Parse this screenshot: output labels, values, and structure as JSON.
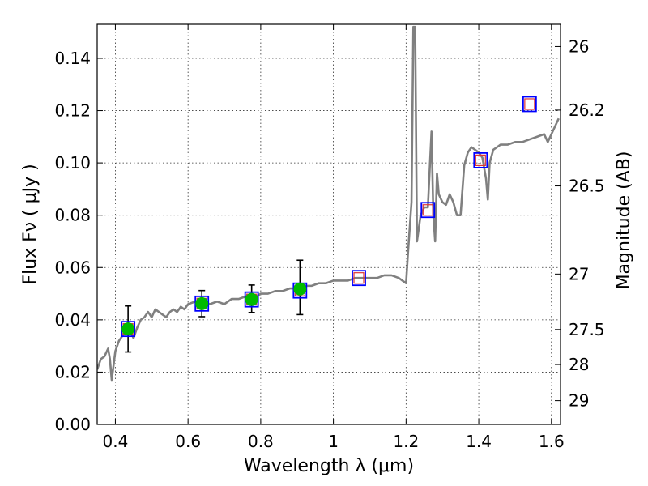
{
  "chart_data": {
    "type": "scatter",
    "xlabel": "Wavelength  λ (μm)",
    "ylabel": "Flux  Fν  ( μJy )",
    "right_ylabel": "Magnitude (AB)",
    "xlim": [
      0.35,
      1.625
    ],
    "ylim": [
      0.0,
      0.153
    ],
    "x_ticks": [
      0.4,
      0.6,
      0.8,
      1.0,
      1.2,
      1.4,
      1.6
    ],
    "x_tick_labels": [
      "0.4",
      "0.6",
      "0.8",
      "1",
      "1.2",
      "1.4",
      "1.6"
    ],
    "y_ticks": [
      0.0,
      0.02,
      0.04,
      0.06,
      0.08,
      0.1,
      0.12,
      0.14
    ],
    "y_tick_labels": [
      "0.00",
      "0.02",
      "0.04",
      "0.06",
      "0.08",
      "0.10",
      "0.12",
      "0.14"
    ],
    "right_ticks": [
      {
        "label": "26",
        "flux": 0.1445
      },
      {
        "label": "26.2",
        "flux": 0.1202
      },
      {
        "label": "26.5",
        "flux": 0.0912
      },
      {
        "label": "27",
        "flux": 0.0575
      },
      {
        "label": "27.5",
        "flux": 0.0363
      },
      {
        "label": "28",
        "flux": 0.0229
      },
      {
        "label": "29",
        "flux": 0.0091
      }
    ],
    "grid": true,
    "colors": {
      "sed_line": "#808080",
      "observed_marker": "#00bb00",
      "model_box": "#0000ff",
      "model_inner": "#dd3333",
      "errorbar": "#000000"
    },
    "series": [
      {
        "type": "line",
        "x": [
          0.35,
          0.36,
          0.37,
          0.38,
          0.385,
          0.39,
          0.4,
          0.41,
          0.42,
          0.43,
          0.44,
          0.45,
          0.46,
          0.47,
          0.48,
          0.49,
          0.5,
          0.51,
          0.52,
          0.53,
          0.54,
          0.55,
          0.56,
          0.57,
          0.58,
          0.59,
          0.6,
          0.62,
          0.64,
          0.66,
          0.68,
          0.7,
          0.72,
          0.74,
          0.76,
          0.78,
          0.8,
          0.82,
          0.84,
          0.86,
          0.88,
          0.9,
          0.92,
          0.94,
          0.96,
          0.98,
          1.0,
          1.02,
          1.04,
          1.06,
          1.08,
          1.1,
          1.12,
          1.14,
          1.16,
          1.18,
          1.2,
          1.205,
          1.215,
          1.22,
          1.225,
          1.23,
          1.235,
          1.24,
          1.25,
          1.26,
          1.27,
          1.275,
          1.28,
          1.285,
          1.29,
          1.3,
          1.31,
          1.32,
          1.33,
          1.34,
          1.35,
          1.36,
          1.37,
          1.38,
          1.39,
          1.4,
          1.41,
          1.42,
          1.425,
          1.43,
          1.44,
          1.45,
          1.46,
          1.48,
          1.5,
          1.52,
          1.54,
          1.56,
          1.58,
          1.59,
          1.6,
          1.62
        ],
        "y": [
          0.021,
          0.025,
          0.026,
          0.029,
          0.025,
          0.017,
          0.028,
          0.032,
          0.034,
          0.038,
          0.036,
          0.033,
          0.037,
          0.04,
          0.041,
          0.043,
          0.041,
          0.044,
          0.043,
          0.042,
          0.041,
          0.043,
          0.044,
          0.043,
          0.045,
          0.044,
          0.046,
          0.047,
          0.047,
          0.046,
          0.047,
          0.046,
          0.048,
          0.048,
          0.049,
          0.048,
          0.05,
          0.05,
          0.051,
          0.051,
          0.052,
          0.052,
          0.053,
          0.053,
          0.054,
          0.054,
          0.055,
          0.055,
          0.055,
          0.056,
          0.056,
          0.056,
          0.056,
          0.057,
          0.057,
          0.056,
          0.054,
          0.065,
          0.085,
          0.152,
          0.152,
          0.07,
          0.075,
          0.08,
          0.083,
          0.083,
          0.112,
          0.08,
          0.07,
          0.096,
          0.088,
          0.085,
          0.084,
          0.088,
          0.085,
          0.08,
          0.08,
          0.099,
          0.104,
          0.106,
          0.105,
          0.104,
          0.102,
          0.094,
          0.086,
          0.1,
          0.105,
          0.106,
          0.107,
          0.107,
          0.108,
          0.108,
          0.109,
          0.11,
          0.111,
          0.108,
          0.111,
          0.117
        ]
      },
      {
        "type": "errorbar",
        "x": [
          0.435,
          0.638,
          0.775,
          0.908
        ],
        "y": [
          0.0365,
          0.0462,
          0.0478,
          0.0518
        ],
        "yerr_low": [
          0.0088,
          0.005,
          0.005,
          0.0098
        ],
        "yerr_high": [
          0.0088,
          0.005,
          0.0055,
          0.011
        ]
      },
      {
        "type": "scatter",
        "marker": "square",
        "x": [
          0.435,
          0.638,
          0.775,
          0.908,
          1.07,
          1.26,
          1.405,
          1.54
        ],
        "y": [
          0.0365,
          0.0462,
          0.0478,
          0.0512,
          0.056,
          0.082,
          0.101,
          0.1225
        ]
      }
    ]
  }
}
